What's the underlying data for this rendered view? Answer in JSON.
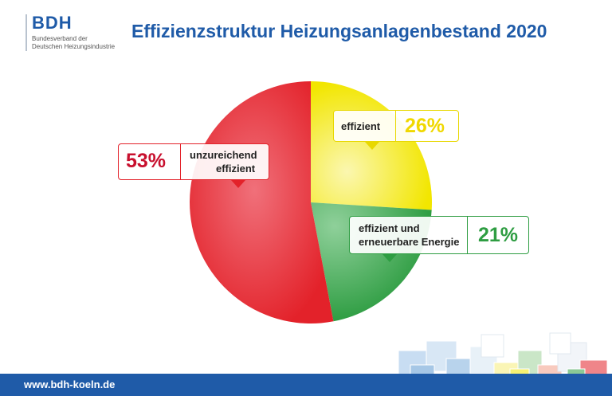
{
  "brand": {
    "logo": "BDH",
    "line1": "Bundesverband der",
    "line2": "Deutschen Heizungsindustrie"
  },
  "title": "Effizienzstruktur Heizungsanlagenbestand 2020",
  "footer": {
    "url": "www.bdh-koeln.de"
  },
  "chart_data": {
    "type": "pie",
    "title": "Effizienzstruktur Heizungsanlagenbestand 2020",
    "slices": [
      {
        "label": "effizient",
        "value": 26,
        "display": "26%",
        "color": "#f2e600"
      },
      {
        "label": "effizient und erneuerbare Energie",
        "label_line1": "effizient und",
        "label_line2": "erneuerbare Energie",
        "value": 21,
        "display": "21%",
        "color": "#2e9d42"
      },
      {
        "label": "unzureichend effizient",
        "label_line1": "unzureichend",
        "label_line2": "effizient",
        "value": 53,
        "display": "53%",
        "color": "#e3222a"
      }
    ]
  },
  "colors": {
    "brand_blue": "#1f5ba8",
    "red": "#e3222a",
    "yellow": "#f2e600",
    "green": "#2e9d42"
  }
}
